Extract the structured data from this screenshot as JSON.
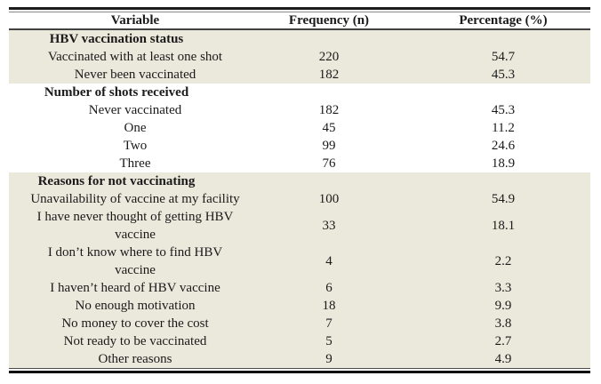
{
  "table": {
    "columns": [
      "Variable",
      "Frequency (n)",
      "Percentage (%)"
    ],
    "sections": [
      {
        "header": "HBV vaccination status",
        "shaded": true,
        "rows": [
          {
            "label": "Vaccinated with at least one shot",
            "frequency": "220",
            "percentage": "54.7"
          },
          {
            "label": "Never been vaccinated",
            "frequency": "182",
            "percentage": "45.3"
          }
        ]
      },
      {
        "header": "Number of shots received",
        "shaded": false,
        "rows": [
          {
            "label": "Never vaccinated",
            "frequency": "182",
            "percentage": "45.3"
          },
          {
            "label": "One",
            "frequency": "45",
            "percentage": "11.2"
          },
          {
            "label": "Two",
            "frequency": "99",
            "percentage": "24.6"
          },
          {
            "label": "Three",
            "frequency": "76",
            "percentage": "18.9"
          }
        ]
      },
      {
        "header": "Reasons for not vaccinating",
        "shaded": true,
        "rows": [
          {
            "label": "Unavailability of vaccine at my facility",
            "frequency": "100",
            "percentage": "54.9"
          },
          {
            "label": "I have never thought of getting HBV\nvaccine",
            "frequency": "33",
            "percentage": "18.1"
          },
          {
            "label": "I don’t know where to find HBV\nvaccine",
            "frequency": "4",
            "percentage": "2.2"
          },
          {
            "label": "I haven’t heard of HBV vaccine",
            "frequency": "6",
            "percentage": "3.3"
          },
          {
            "label": "No enough motivation",
            "frequency": "18",
            "percentage": "9.9"
          },
          {
            "label": "No money to cover the cost",
            "frequency": "7",
            "percentage": "3.8"
          },
          {
            "label": "Not ready to be vaccinated",
            "frequency": "5",
            "percentage": "2.7"
          },
          {
            "label": "Other reasons",
            "frequency": "9",
            "percentage": "4.9"
          }
        ]
      }
    ]
  },
  "colors": {
    "shaded_row_bg": "#ebe8dc",
    "rule_dark": "#1c1c1c",
    "rule_mid": "#414141",
    "rule_light": "#8a8a8a",
    "text": "#1a1a1a"
  }
}
